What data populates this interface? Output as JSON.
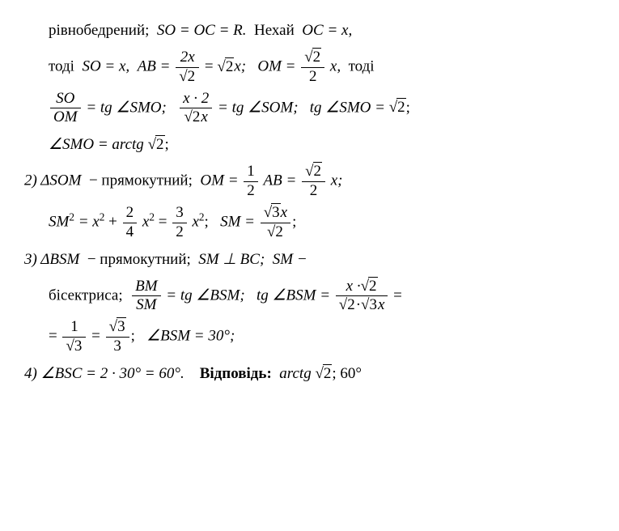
{
  "l1_a": "рівнобедрений;",
  "l1_b": "SO = OC = R.",
  "l1_c": "Нехай",
  "l1_d": "OC = x,",
  "l2_a": "тоді",
  "l2_b": "SO = x,",
  "l2_c": "AB =",
  "l2_frac1_num": "2x",
  "l2_frac1_den": "2",
  "l2_d": "=",
  "l2_e": "2",
  "l2_f": "x;",
  "l2_g": "OM =",
  "l2_frac2_num": "2",
  "l2_frac2_den": "2",
  "l2_h": "x,",
  "l2_i": "тоді",
  "l3_frac1_num": "SO",
  "l3_frac1_den": "OM",
  "l3_a": "= tg ∠SMO;",
  "l3_frac2_num": "x · 2",
  "l3_frac2_den": "2",
  "l3_frac2_den2": "x",
  "l3_b": "= tg ∠SOM;",
  "l3_c": "tg ∠SMO =",
  "l3_d": "2",
  "l3_e": ";",
  "l4_a": "∠SMO = arctg",
  "l4_b": "2",
  "l4_c": ";",
  "l5_a": "2) ΔSOM",
  "l5_b": "− прямокутний;",
  "l5_c": "OM =",
  "l5_frac1_num": "1",
  "l5_frac1_den": "2",
  "l5_d": "AB =",
  "l5_frac2_num": "2",
  "l5_frac2_den": "2",
  "l5_e": "x;",
  "l6_a": "SM",
  "l6_b": "= x",
  "l6_c": "+",
  "l6_frac1_num": "2",
  "l6_frac1_den": "4",
  "l6_d": "x",
  "l6_e": "=",
  "l6_frac2_num": "3",
  "l6_frac2_den": "2",
  "l6_f": "x",
  "l6_g": ";",
  "l6_h": "SM =",
  "l6_frac3_num": "3",
  "l6_frac3_num2": "x",
  "l6_frac3_den": "2",
  "l6_i": ";",
  "l7_a": "3) ΔBSM",
  "l7_b": "− прямокутний;",
  "l7_c": "SM ⊥ BC;",
  "l7_d": "SM −",
  "l8_a": "бісектриса;",
  "l8_frac1_num": "BM",
  "l8_frac1_den": "SM",
  "l8_b": "= tg ∠BSM;",
  "l8_c": "tg ∠BSM =",
  "l8_frac2_num1": "x ·",
  "l8_frac2_num2": "2",
  "l8_frac2_den1": "2",
  "l8_frac2_den2": "·",
  "l8_frac2_den3": "3",
  "l8_frac2_den4": "x",
  "l8_d": "=",
  "l9_a": "=",
  "l9_frac1_num": "1",
  "l9_frac1_den": "3",
  "l9_b": "=",
  "l9_frac2_num": "3",
  "l9_frac2_den": "3",
  "l9_c": ";",
  "l9_d": "∠BSM = 30°;",
  "l10_a": "4) ∠BSC = 2 · 30° = 60°.",
  "l10_b": "Відповідь:",
  "l10_c": "arctg",
  "l10_d": "2",
  "l10_e": ";  60°"
}
